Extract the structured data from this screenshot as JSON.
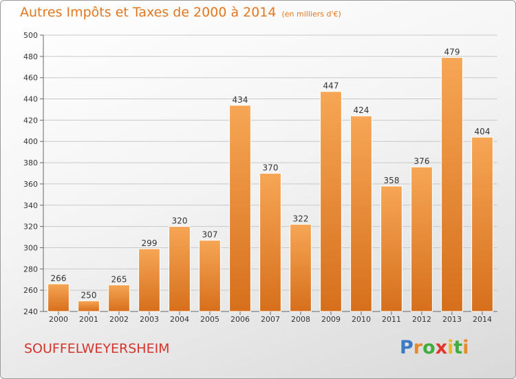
{
  "title": "Autres Impôts et Taxes de 2000 à 2014",
  "subtitle": "(en milliers d'€)",
  "commune": "SOUFFELWEYERSHEIM",
  "logo": [
    "P",
    "r",
    "o",
    "x",
    "i",
    "t",
    "i"
  ],
  "colors": {
    "title": "#e2771f",
    "commune": "#d5342a",
    "bar_top": "#f6a655",
    "bar_bottom": "#d66f1c",
    "grid": "#c8c8c8"
  },
  "chart_data": {
    "type": "bar",
    "categories": [
      "2000",
      "2001",
      "2002",
      "2003",
      "2004",
      "2005",
      "2006",
      "2007",
      "2008",
      "2009",
      "2010",
      "2011",
      "2012",
      "2013",
      "2014"
    ],
    "values": [
      266,
      250,
      265,
      299,
      320,
      307,
      434,
      370,
      322,
      447,
      424,
      358,
      376,
      479,
      404
    ],
    "ylim": [
      240,
      500
    ],
    "yticks": [
      240,
      260,
      280,
      300,
      320,
      340,
      360,
      380,
      400,
      420,
      440,
      460,
      480,
      500
    ],
    "grid": true
  }
}
